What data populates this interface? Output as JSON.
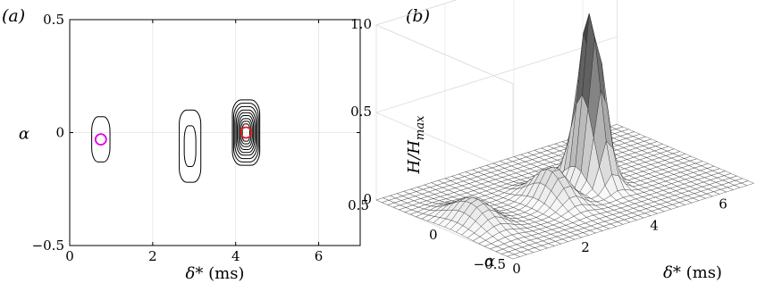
{
  "chart_data": [
    {
      "panel": "(a)",
      "type": "contour",
      "xlabel_symbol": "δ*",
      "xlabel_unit": " (ms)",
      "ylabel": "α",
      "xlim": [
        0,
        7
      ],
      "ylim": [
        -0.5,
        0.5
      ],
      "x_ticks": [
        0,
        2,
        4,
        6
      ],
      "y_ticks": [
        -0.5,
        0,
        0.5
      ],
      "y_tick_labels": [
        "−0.5",
        "0",
        "0.5"
      ],
      "grid": true,
      "contour_groups": [
        {
          "center_x": 0.75,
          "center_y": -0.03,
          "half_width_x": [
            0.22
          ],
          "half_height_y": [
            0.1
          ]
        },
        {
          "center_x": 2.9,
          "center_y": -0.06,
          "half_width_x": [
            0.26,
            0.14
          ],
          "half_height_y": [
            0.16,
            0.09
          ]
        },
        {
          "center_x": 4.25,
          "center_y": 0.0,
          "half_width_x": [
            0.33,
            0.3,
            0.27,
            0.24,
            0.21,
            0.18,
            0.15,
            0.12,
            0.09
          ],
          "half_height_y": [
            0.145,
            0.13,
            0.115,
            0.1,
            0.088,
            0.075,
            0.062,
            0.05,
            0.038
          ]
        }
      ],
      "markers": [
        {
          "x": 0.75,
          "y": -0.03,
          "color": "#e000e0"
        },
        {
          "x": 4.25,
          "y": 0.0,
          "color": "#e02020"
        }
      ],
      "line_color": "#000000"
    },
    {
      "panel": "(b)",
      "type": "surface3d",
      "zlabel_main": "H/H",
      "zlabel_sub": "max",
      "xlabel_symbol": "δ*",
      "xlabel_unit": " (ms)",
      "ylabel": "α",
      "xlim": [
        0,
        7
      ],
      "ylim": [
        -0.5,
        0.5
      ],
      "zlim": [
        0,
        1
      ],
      "x_ticks": [
        0,
        2,
        4,
        6
      ],
      "y_ticks": [
        -0.5,
        0,
        0.5
      ],
      "y_tick_labels": [
        "−0.5",
        "0",
        "0.5"
      ],
      "z_ticks": [
        0,
        0.5,
        1.0
      ],
      "z_tick_labels": [
        "0",
        "0.5",
        "1.0"
      ],
      "peaks": [
        {
          "x": 4.25,
          "y": 0.0,
          "height": 1.0
        },
        {
          "x": 2.9,
          "y": -0.06,
          "height": 0.2
        },
        {
          "x": 0.75,
          "y": -0.03,
          "height": 0.14
        }
      ]
    }
  ]
}
